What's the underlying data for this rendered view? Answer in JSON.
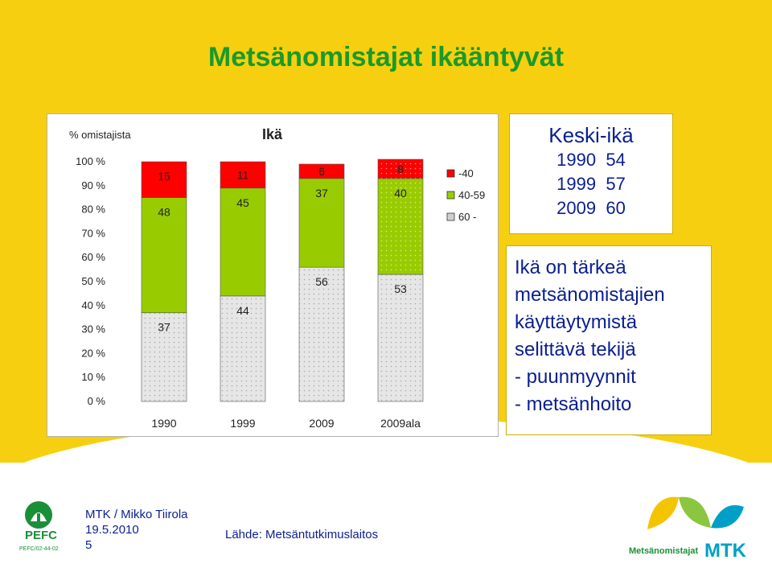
{
  "slide": {
    "title": "Metsänomistajat ikääntyvät",
    "info_box": {
      "header": "Keski-ikä",
      "rows": [
        "1990  54",
        "1999  57",
        "2009  60"
      ]
    },
    "text_box": {
      "lines": [
        "Ikä on tärkeä",
        "metsänomistajien",
        "käyttäytymistä",
        "selittävä tekijä",
        "- puunmyynnit",
        "- metsänhoito"
      ]
    },
    "footer": {
      "author": "MTK / Mikko Tiirola",
      "date": "19.5.2010",
      "page": "5",
      "source": "Lähde: Metsäntutkimuslaitos"
    },
    "logos": {
      "pefc_label": "PEFC",
      "pefc_code": "PEFC/02-44-02",
      "mtk_label": "MTK",
      "mtk_sub": "Metsänomistajat"
    }
  },
  "chart_data": {
    "type": "bar",
    "stacked": true,
    "title": "Ikä",
    "ylabel": "% omistajista",
    "ylim": [
      0,
      100
    ],
    "yticks": [
      "0 %",
      "10 %",
      "20 %",
      "30 %",
      "40 %",
      "50 %",
      "60 %",
      "70 %",
      "80 %",
      "90 %",
      "100 %"
    ],
    "categories": [
      "1990",
      "1999",
      "2009",
      "2009ala"
    ],
    "series": [
      {
        "name": "60 -",
        "values": [
          37,
          44,
          56,
          53
        ],
        "color": "#d0d0d0",
        "pattern": "dotted"
      },
      {
        "name": "40-59",
        "values": [
          48,
          45,
          37,
          40
        ],
        "color": "#99cc00",
        "pattern": "solid"
      },
      {
        "name": "-40",
        "values": [
          15,
          11,
          6,
          8
        ],
        "color": "#ff0000",
        "pattern": "solid"
      }
    ],
    "dotted_categories": [
      "2009ala"
    ],
    "legend_order": [
      "-40",
      "40-59",
      "60 -"
    ],
    "legend_position": "right",
    "grid": false
  }
}
